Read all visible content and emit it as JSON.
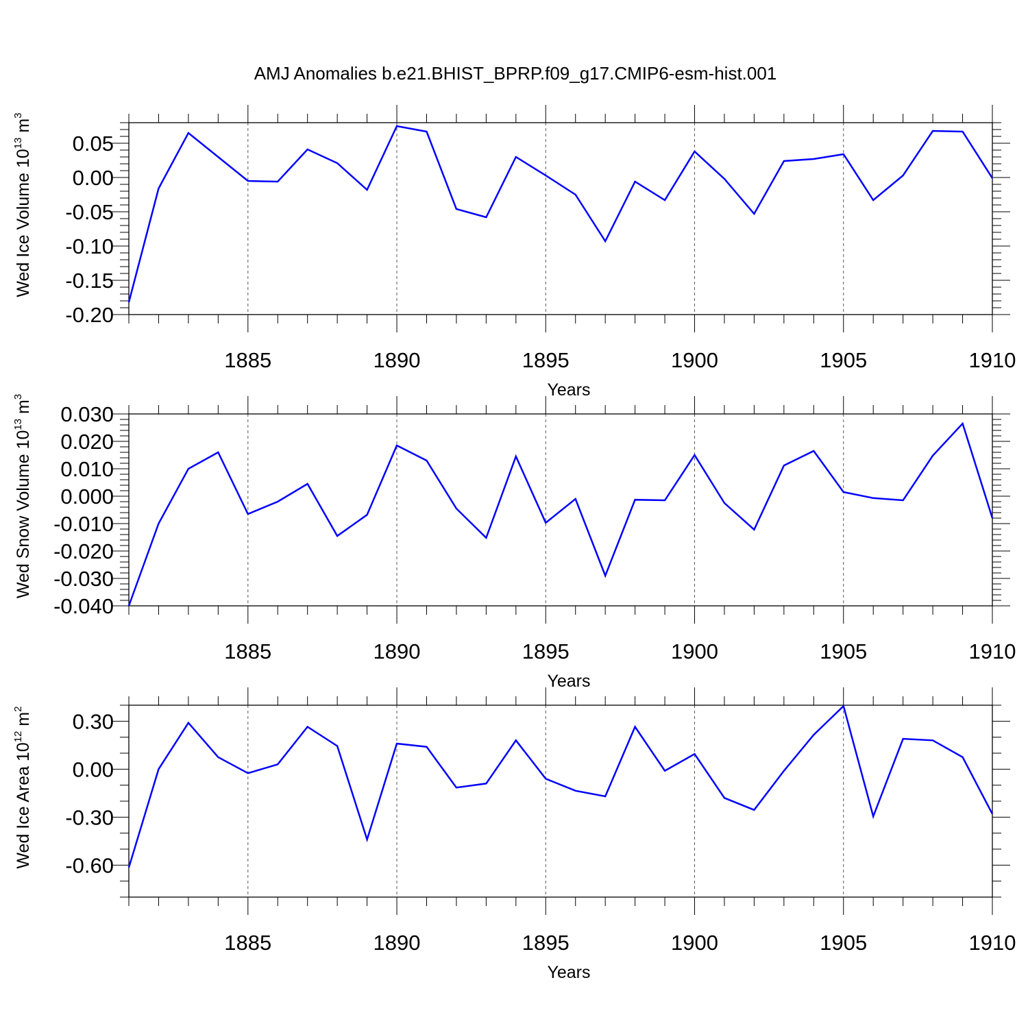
{
  "title": "AMJ Anomalies b.e21.BHIST_BPRP.f09_g17.CMIP6-esm-hist.001",
  "line_color": "#0000ff",
  "chart_data": [
    {
      "type": "line",
      "name": "ice-volume",
      "ylabel_main": "Wed Ice Volume 10",
      "ylabel_exp": "13",
      "ylabel_unit": " m",
      "ylabel_unit_exp": "3",
      "xlabel": "Years",
      "xlim": [
        1881,
        1910
      ],
      "ylim": [
        -0.2,
        0.08
      ],
      "x_ticks": [
        1885,
        1890,
        1895,
        1900,
        1905,
        1910
      ],
      "x_tick_labels": [
        "1885",
        "1890",
        "1895",
        "1900",
        "1905",
        "1910"
      ],
      "y_ticks": [
        0.05,
        0.0,
        -0.05,
        -0.1,
        -0.15,
        -0.2
      ],
      "y_tick_labels": [
        "0.05",
        "0.00",
        "-0.05",
        "-0.10",
        "-0.15",
        "-0.20"
      ],
      "y_minor_step": 0.01,
      "grid_lines_x": [
        1885,
        1890,
        1895,
        1900,
        1905
      ],
      "x": [
        1881,
        1882,
        1883,
        1884,
        1885,
        1886,
        1887,
        1888,
        1889,
        1890,
        1891,
        1892,
        1893,
        1894,
        1895,
        1896,
        1897,
        1898,
        1899,
        1900,
        1901,
        1902,
        1903,
        1904,
        1905,
        1906,
        1907,
        1908,
        1909,
        1910
      ],
      "values": [
        -0.182,
        -0.016,
        0.065,
        0.03,
        -0.005,
        -0.006,
        0.041,
        0.021,
        -0.018,
        0.075,
        0.067,
        -0.046,
        -0.058,
        0.03,
        0.003,
        -0.025,
        -0.093,
        -0.006,
        -0.033,
        0.038,
        -0.002,
        -0.053,
        0.024,
        0.027,
        0.034,
        -0.033,
        0.003,
        0.068,
        0.067,
        -0.001
      ]
    },
    {
      "type": "line",
      "name": "snow-volume",
      "ylabel_main": "Wed Snow Volume 10",
      "ylabel_exp": "13",
      "ylabel_unit": " m",
      "ylabel_unit_exp": "3",
      "xlabel": "Years",
      "xlim": [
        1881,
        1910
      ],
      "ylim": [
        -0.04,
        0.03
      ],
      "x_ticks": [
        1885,
        1890,
        1895,
        1900,
        1905,
        1910
      ],
      "x_tick_labels": [
        "1885",
        "1890",
        "1895",
        "1900",
        "1905",
        "1910"
      ],
      "y_ticks": [
        0.03,
        0.02,
        0.01,
        0.0,
        -0.01,
        -0.02,
        -0.03,
        -0.04
      ],
      "y_tick_labels": [
        "0.030",
        "0.020",
        "0.010",
        "0.000",
        "-0.010",
        "-0.020",
        "-0.030",
        "-0.040"
      ],
      "y_minor_step": 0.002,
      "grid_lines_x": [
        1885,
        1890,
        1895,
        1900,
        1905
      ],
      "x": [
        1881,
        1882,
        1883,
        1884,
        1885,
        1886,
        1887,
        1888,
        1889,
        1890,
        1891,
        1892,
        1893,
        1894,
        1895,
        1896,
        1897,
        1898,
        1899,
        1900,
        1901,
        1902,
        1903,
        1904,
        1905,
        1906,
        1907,
        1908,
        1909,
        1910
      ],
      "values": [
        -0.04,
        -0.01,
        0.01,
        0.016,
        -0.0065,
        -0.002,
        0.0045,
        -0.0145,
        -0.0068,
        0.0185,
        0.013,
        -0.0045,
        -0.0152,
        0.0145,
        -0.0097,
        -0.001,
        -0.029,
        -0.0013,
        -0.0015,
        0.015,
        -0.0025,
        -0.0122,
        0.0112,
        0.0165,
        0.0015,
        -0.0007,
        -0.0015,
        0.0148,
        0.0265,
        -0.008
      ]
    },
    {
      "type": "line",
      "name": "ice-area",
      "ylabel_main": "Wed Ice Area 10",
      "ylabel_exp": "12",
      "ylabel_unit": " m",
      "ylabel_unit_exp": "2",
      "xlabel": "Years",
      "xlim": [
        1881,
        1910
      ],
      "ylim": [
        -0.8,
        0.4
      ],
      "x_ticks": [
        1885,
        1890,
        1895,
        1900,
        1905,
        1910
      ],
      "x_tick_labels": [
        "1885",
        "1890",
        "1895",
        "1900",
        "1905",
        "1910"
      ],
      "y_ticks": [
        0.3,
        0.0,
        -0.3,
        -0.6
      ],
      "y_tick_labels": [
        "0.30",
        "0.00",
        "-0.30",
        "-0.60"
      ],
      "y_minor_step": 0.1,
      "grid_lines_x": [
        1885,
        1890,
        1895,
        1900,
        1905
      ],
      "x": [
        1881,
        1882,
        1883,
        1884,
        1885,
        1886,
        1887,
        1888,
        1889,
        1890,
        1891,
        1892,
        1893,
        1894,
        1895,
        1896,
        1897,
        1898,
        1899,
        1900,
        1901,
        1902,
        1903,
        1904,
        1905,
        1906,
        1907,
        1908,
        1909,
        1910
      ],
      "values": [
        -0.615,
        0.0,
        0.29,
        0.075,
        -0.025,
        0.03,
        0.265,
        0.145,
        -0.44,
        0.16,
        0.14,
        -0.115,
        -0.09,
        0.18,
        -0.06,
        -0.135,
        -0.17,
        0.265,
        -0.01,
        0.095,
        -0.18,
        -0.255,
        -0.01,
        0.215,
        0.395,
        -0.295,
        0.19,
        0.18,
        0.075,
        -0.28
      ]
    }
  ]
}
